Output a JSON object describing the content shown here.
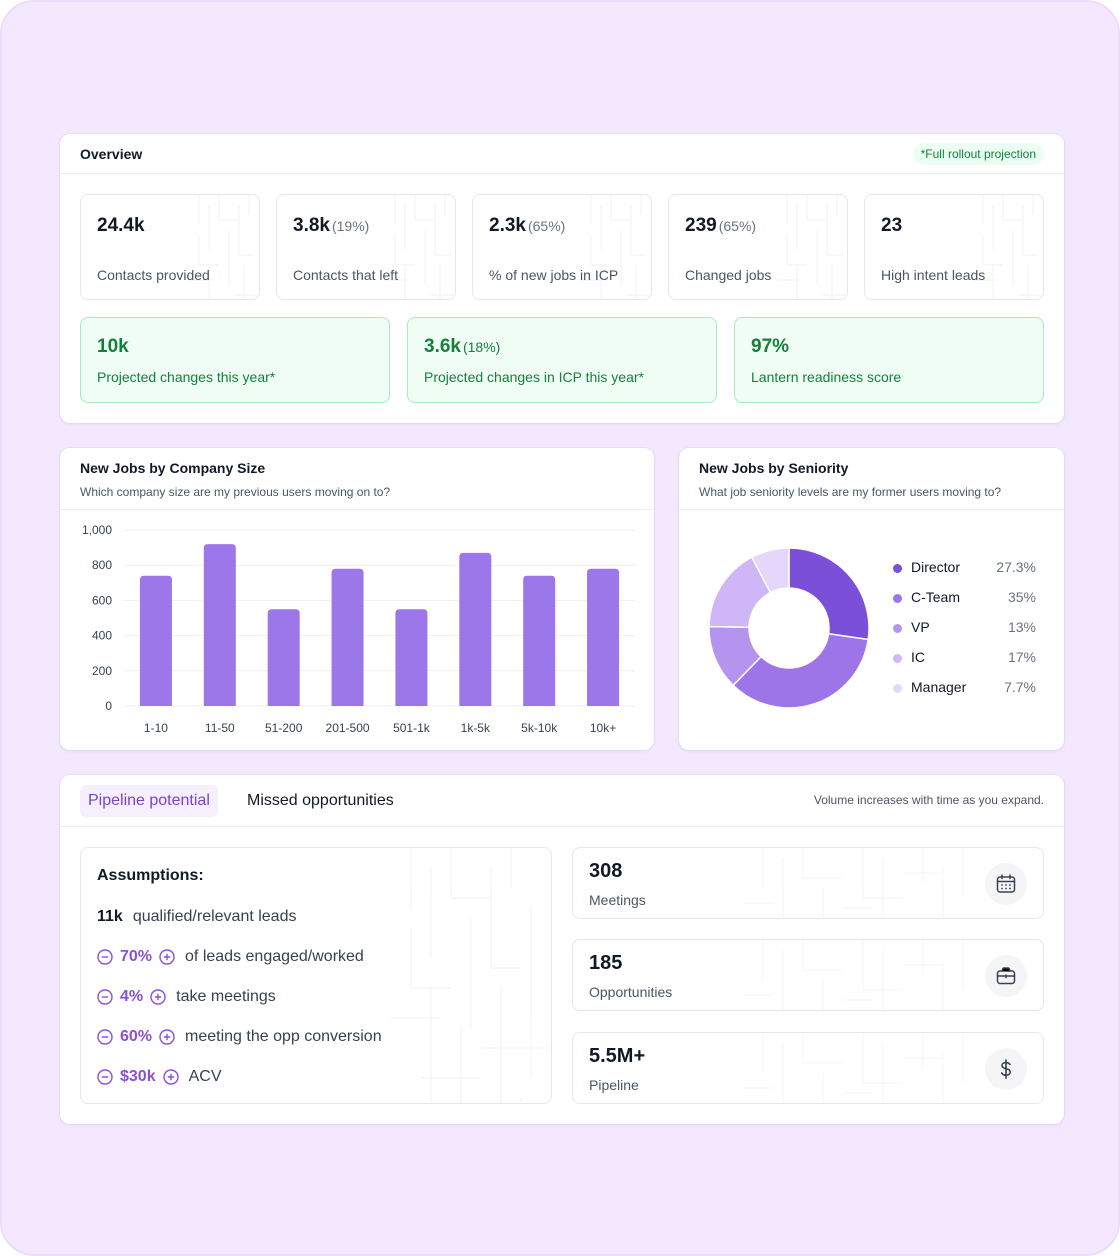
{
  "colors": {
    "accent": "#8b4fdc",
    "bar": "#9b77ea",
    "green_text": "#15803d",
    "green_bg": "#f0fdf4",
    "background": "#f3e8ff"
  },
  "overview": {
    "title": "Overview",
    "badge": "*Full rollout projection",
    "stats": [
      {
        "value": "24.4k",
        "pct": "",
        "label": "Contacts provided"
      },
      {
        "value": "3.8k",
        "pct": "(19%)",
        "label": "Contacts that left"
      },
      {
        "value": "2.3k",
        "pct": "(65%)",
        "label": "% of new jobs in ICP"
      },
      {
        "value": "239",
        "pct": "(65%)",
        "label": "Changed jobs"
      },
      {
        "value": "23",
        "pct": "",
        "label": "High intent leads"
      }
    ],
    "projections": [
      {
        "value": "10k",
        "pct": "",
        "label": "Projected changes this year*"
      },
      {
        "value": "3.6k",
        "pct": "(18%)",
        "label": "Projected changes in ICP this year*"
      },
      {
        "value": "97%",
        "pct": "",
        "label": "Lantern readiness score"
      }
    ]
  },
  "company_size": {
    "title": "New Jobs by Company Size",
    "subtitle": "Which company size are my previous users moving on to?"
  },
  "seniority": {
    "title": "New Jobs by Seniority",
    "subtitle": "What job seniority levels are my former users moving to?"
  },
  "chart_data": [
    {
      "type": "bar",
      "title": "New Jobs by Company Size",
      "categories": [
        "1-10",
        "11-50",
        "51-200",
        "201-500",
        "501-1k",
        "1k-5k",
        "5k-10k",
        "10k+"
      ],
      "values": [
        740,
        920,
        550,
        780,
        550,
        870,
        740,
        780
      ],
      "ylim": [
        0,
        1000
      ],
      "yticks": [
        0,
        200,
        400,
        600,
        800,
        1000
      ],
      "ytick_labels": [
        "0",
        "200",
        "400",
        "600",
        "800",
        "1,000"
      ],
      "grid": true,
      "color": "#9b77ea"
    },
    {
      "type": "pie",
      "title": "New Jobs by Seniority",
      "donut": true,
      "legend_position": "right",
      "slices": [
        {
          "name": "Director",
          "value": 27.3,
          "label": "27.3%",
          "color": "#7c4fd8"
        },
        {
          "name": "C-Team",
          "value": 35,
          "label": "35%",
          "color": "#9d75e8"
        },
        {
          "name": "VP",
          "value": 13,
          "label": "13%",
          "color": "#b594ef"
        },
        {
          "name": "IC",
          "value": 17,
          "label": "17%",
          "color": "#cfb6f6"
        },
        {
          "name": "Manager",
          "value": 7.7,
          "label": "7.7%",
          "color": "#e4d7fb"
        }
      ]
    }
  ],
  "pipeline": {
    "tabs": [
      {
        "label": "Pipeline potential",
        "active": true
      },
      {
        "label": "Missed opportunities",
        "active": false
      }
    ],
    "note": "Volume increases with time as you expand.",
    "assumptions": {
      "title": "Assumptions:",
      "leads_value": "11k",
      "leads_text": "qualified/relevant leads",
      "rows": [
        {
          "value": "70%",
          "text": "of leads engaged/worked"
        },
        {
          "value": "4%",
          "text": "take meetings"
        },
        {
          "value": "60%",
          "text": "meeting the opp conversion"
        },
        {
          "value": "$30k",
          "text": "ACV"
        }
      ]
    },
    "metrics": [
      {
        "value": "308",
        "label": "Meetings",
        "icon": "calendar-icon"
      },
      {
        "value": "185",
        "label": "Opportunities",
        "icon": "briefcase-icon"
      },
      {
        "value": "5.5M+",
        "label": "Pipeline",
        "icon": "dollar-icon"
      }
    ]
  }
}
